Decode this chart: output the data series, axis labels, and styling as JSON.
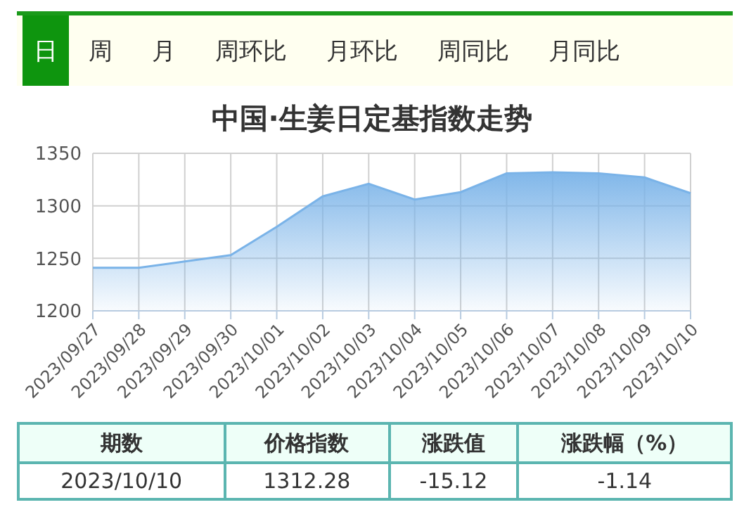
{
  "chart_data": {
    "type": "area",
    "title": "中国·生姜日定基指数走势",
    "categories": [
      "2023/09/27",
      "2023/09/28",
      "2023/09/29",
      "2023/09/30",
      "2023/10/01",
      "2023/10/02",
      "2023/10/03",
      "2023/10/04",
      "2023/10/05",
      "2023/10/06",
      "2023/10/07",
      "2023/10/08",
      "2023/10/09",
      "2023/10/10"
    ],
    "series": [
      {
        "color": "#7ab3e8",
        "values": [
          1241,
          1241,
          1247,
          1253,
          1280,
          1309,
          1321,
          1306,
          1313,
          1331,
          1332,
          1331,
          1327,
          1312
        ]
      }
    ],
    "ylim": [
      1200,
      1350
    ],
    "yticks": [
      1200,
      1250,
      1300,
      1350
    ],
    "grid": true,
    "legend": false,
    "annotations": [
      "日",
      "周",
      "月",
      "周环比",
      "月环比",
      "周同比",
      "月同比",
      "期数",
      "价格指数",
      "涨跌值",
      "涨跌幅（%）",
      "2023/10/10",
      "1312.28",
      "-15.12",
      "-1.14"
    ]
  }
}
